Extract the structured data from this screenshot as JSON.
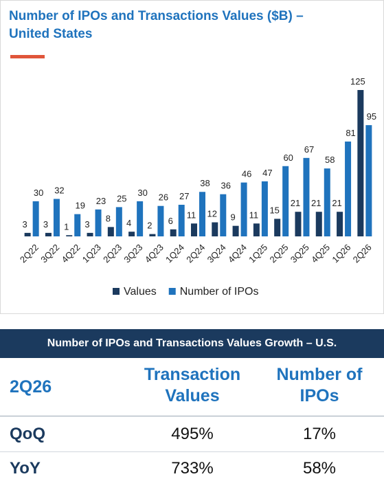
{
  "chart_data": {
    "type": "bar",
    "title": "Number of IPOs and Transactions Values ($B) – United States",
    "categories": [
      "2Q22",
      "3Q22",
      "4Q22",
      "1Q23",
      "2Q23",
      "3Q23",
      "4Q23",
      "1Q24",
      "2Q24",
      "3Q24",
      "4Q24",
      "1Q25",
      "2Q25",
      "3Q25",
      "4Q25",
      "1Q26",
      "2Q26"
    ],
    "series": [
      {
        "name": "Values",
        "color": "#1b3a5e",
        "values": [
          3,
          3,
          1,
          3,
          8,
          4,
          2,
          6,
          11,
          12,
          9,
          11,
          15,
          21,
          21,
          21,
          125
        ]
      },
      {
        "name": "Number of IPOs",
        "color": "#1f73bd",
        "values": [
          30,
          32,
          19,
          23,
          25,
          30,
          26,
          27,
          38,
          36,
          46,
          47,
          60,
          67,
          58,
          81,
          95
        ]
      }
    ],
    "legend": "bottom"
  },
  "table": {
    "title": "Number of IPOs and Transactions Values Growth – U.S.",
    "columns": [
      "2Q26",
      "Transaction Values",
      "Number of IPOs"
    ],
    "rows": [
      [
        "QoQ",
        "495%",
        "17%"
      ],
      [
        "YoY",
        "733%",
        "58%"
      ]
    ]
  }
}
